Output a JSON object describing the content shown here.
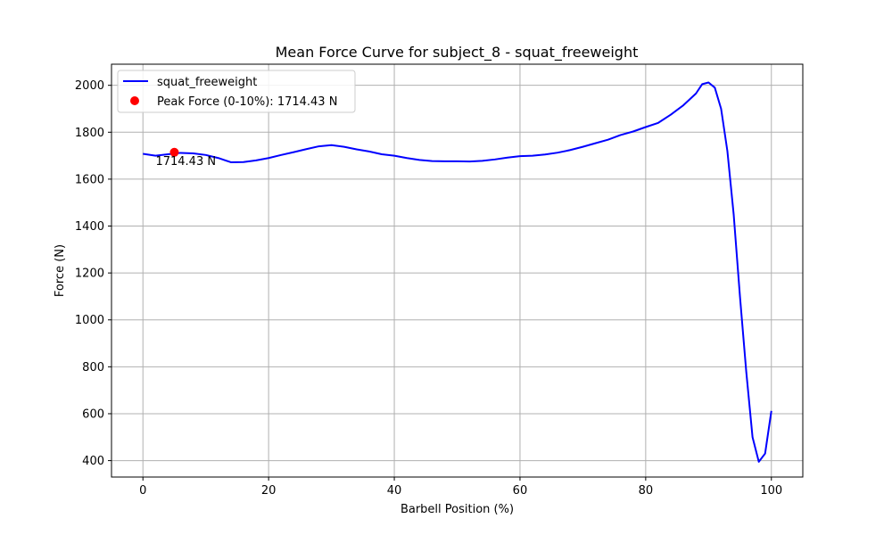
{
  "chart_data": {
    "type": "line",
    "title": "Mean Force Curve for subject_8 - squat_freeweight",
    "xlabel": "Barbell Position (%)",
    "ylabel": "Force (N)",
    "xlim": [
      -5,
      105
    ],
    "ylim": [
      330,
      2090
    ],
    "x_ticks": [
      0,
      20,
      40,
      60,
      80,
      100
    ],
    "y_ticks": [
      400,
      600,
      800,
      1000,
      1200,
      1400,
      1600,
      1800,
      2000
    ],
    "grid": true,
    "legend_position": "upper-left",
    "series": [
      {
        "name": "squat_freeweight",
        "color": "#0000ff",
        "x": [
          0,
          2,
          4,
          6,
          8,
          10,
          12,
          14,
          16,
          18,
          20,
          22,
          24,
          26,
          28,
          30,
          32,
          34,
          36,
          38,
          40,
          42,
          44,
          46,
          48,
          50,
          52,
          54,
          56,
          58,
          60,
          62,
          64,
          66,
          68,
          70,
          72,
          74,
          76,
          78,
          80,
          82,
          84,
          86,
          88,
          89,
          90,
          91,
          92,
          93,
          94,
          95,
          96,
          97,
          98,
          99,
          100
        ],
        "values": [
          1708,
          1700,
          1706,
          1712,
          1710,
          1703,
          1690,
          1672,
          1673,
          1680,
          1690,
          1703,
          1715,
          1728,
          1740,
          1745,
          1738,
          1727,
          1718,
          1706,
          1700,
          1690,
          1682,
          1677,
          1676,
          1676,
          1675,
          1678,
          1684,
          1692,
          1698,
          1700,
          1705,
          1713,
          1724,
          1738,
          1753,
          1768,
          1788,
          1803,
          1822,
          1840,
          1875,
          1915,
          1965,
          2005,
          2012,
          1990,
          1900,
          1720,
          1450,
          1100,
          780,
          500,
          395,
          430,
          612
        ]
      }
    ],
    "peak_point": {
      "label": "Peak Force (0-10%): 1714.43 N",
      "x": 5,
      "y": 1714.43,
      "annotation": "1714.43 N",
      "color": "#ff0000"
    }
  }
}
